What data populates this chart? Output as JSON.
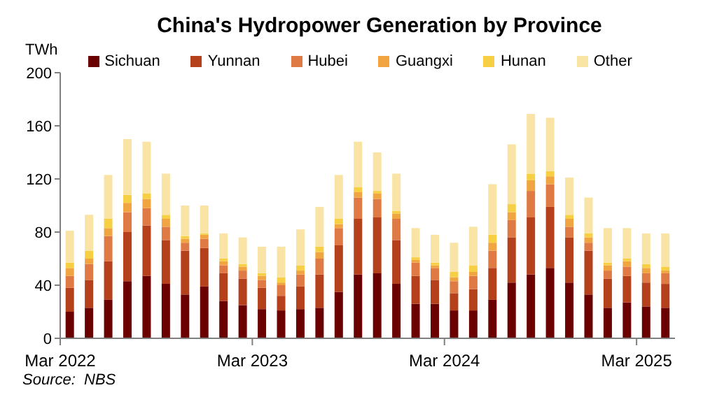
{
  "chart_data": {
    "type": "bar",
    "stacked": true,
    "title": "China's Hydropower Generation by Province",
    "ylabel": "TWh",
    "categories": [
      "Mar 2022",
      null,
      null,
      null,
      null,
      null,
      null,
      null,
      null,
      null,
      "Mar 2023",
      null,
      null,
      null,
      null,
      null,
      null,
      null,
      null,
      null,
      "Mar 2024",
      null,
      null,
      null,
      null,
      null,
      null,
      null,
      null,
      null,
      "Mar 2025",
      null
    ],
    "series": [
      {
        "name": "Sichuan",
        "color": "#6b0000",
        "values": [
          20,
          23,
          29,
          43,
          47,
          41,
          33,
          39,
          28,
          25,
          22,
          21,
          22,
          23,
          35,
          48,
          49,
          41,
          26,
          26,
          21,
          21,
          29,
          42,
          48,
          53,
          42,
          33,
          23,
          27,
          24,
          23
        ]
      },
      {
        "name": "Yunnan",
        "color": "#b5401c",
        "values": [
          18,
          21,
          29,
          37,
          38,
          33,
          33,
          29,
          21,
          20,
          16,
          11,
          17,
          25,
          35,
          42,
          42,
          33,
          21,
          18,
          13,
          16,
          24,
          34,
          43,
          46,
          34,
          33,
          22,
          20,
          18,
          18
        ]
      },
      {
        "name": "Hubei",
        "color": "#e07a44",
        "values": [
          9,
          12,
          19,
          15,
          13,
          10,
          6,
          7,
          6,
          6,
          6,
          8,
          9,
          12,
          13,
          16,
          14,
          16,
          10,
          9,
          9,
          10,
          13,
          13,
          20,
          17,
          8,
          6,
          6,
          7,
          7,
          8
        ]
      },
      {
        "name": "Guangxi",
        "color": "#f0a540",
        "values": [
          6,
          4,
          6,
          7,
          7,
          6,
          3,
          3,
          3,
          3,
          3,
          2,
          3,
          5,
          3,
          4,
          4,
          4,
          2,
          2,
          3,
          3,
          6,
          6,
          8,
          6,
          6,
          4,
          4,
          4,
          4,
          2
        ]
      },
      {
        "name": "Hunan",
        "color": "#f6cf45",
        "values": [
          4,
          6,
          7,
          6,
          4,
          3,
          2,
          1,
          2,
          2,
          2,
          4,
          4,
          4,
          4,
          4,
          2,
          2,
          2,
          2,
          4,
          5,
          6,
          6,
          5,
          4,
          3,
          3,
          2,
          2,
          3,
          3
        ]
      },
      {
        "name": "Other",
        "color": "#f9e4a5",
        "values": [
          24,
          27,
          33,
          42,
          39,
          31,
          23,
          21,
          19,
          20,
          20,
          23,
          27,
          30,
          33,
          34,
          29,
          28,
          22,
          21,
          22,
          29,
          38,
          45,
          45,
          40,
          28,
          27,
          26,
          23,
          23,
          25
        ]
      }
    ],
    "ylim": [
      0,
      200
    ],
    "yticks": [
      0,
      40,
      80,
      120,
      160,
      200
    ],
    "grid": false,
    "legend": "top",
    "annotations": [
      "Source:  NBS"
    ]
  }
}
